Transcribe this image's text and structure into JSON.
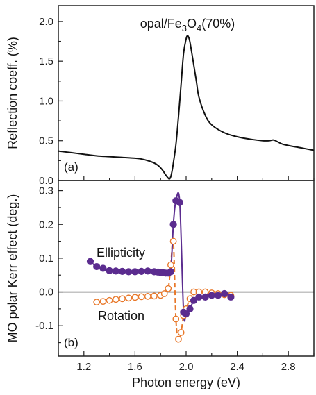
{
  "colors": {
    "reflection": "#111111",
    "ellipticity": "#5b2c8f",
    "rotation": "#e8782a",
    "frame": "#222222"
  },
  "xlabel": "Photon energy (eV)",
  "xticks": [
    "1.2",
    "1.6",
    "2.0",
    "2.4",
    "2.8"
  ],
  "chart_data": [
    {
      "type": "line",
      "panel_label": "(a)",
      "title": "opal/Fe3O4(70%)",
      "title_parts": [
        "opal/Fe",
        "3",
        "O",
        "4",
        "(70%)"
      ],
      "ylabel": "Reflection coeff. (%)",
      "xlim": [
        1.0,
        3.0
      ],
      "ylim": [
        0.0,
        2.2
      ],
      "yticks": [
        "0.0",
        "0.5",
        "1.0",
        "1.5",
        "2.0"
      ],
      "series": [
        {
          "x": [
            1.0,
            1.1,
            1.2,
            1.3,
            1.4,
            1.5,
            1.6,
            1.65,
            1.7,
            1.75,
            1.78,
            1.8,
            1.82,
            1.84,
            1.86,
            1.87,
            1.88,
            1.89,
            1.9,
            1.92,
            1.94,
            1.96,
            1.98,
            2.0,
            2.01,
            2.02,
            2.03,
            2.05,
            2.08,
            2.1,
            2.15,
            2.2,
            2.3,
            2.4,
            2.5,
            2.6,
            2.65,
            2.68,
            2.7,
            2.75,
            2.8,
            2.9,
            3.0
          ],
          "y": [
            0.37,
            0.35,
            0.33,
            0.31,
            0.3,
            0.29,
            0.28,
            0.27,
            0.25,
            0.22,
            0.19,
            0.16,
            0.12,
            0.07,
            0.03,
            0.02,
            0.05,
            0.12,
            0.22,
            0.45,
            0.8,
            1.2,
            1.6,
            1.78,
            1.82,
            1.8,
            1.74,
            1.55,
            1.25,
            1.05,
            0.82,
            0.7,
            0.6,
            0.55,
            0.52,
            0.5,
            0.5,
            0.51,
            0.5,
            0.46,
            0.44,
            0.41,
            0.38
          ]
        }
      ]
    },
    {
      "type": "line",
      "panel_label": "(b)",
      "ylabel": "MO polar Kerr effect (deg.)",
      "xlim": [
        1.0,
        3.0
      ],
      "ylim": [
        -0.19,
        0.33
      ],
      "yticks": [
        "-0.1",
        "0.0",
        "0.1",
        "0.2",
        "0.3"
      ],
      "annotations": [
        "Ellipticity",
        "Rotation"
      ],
      "series": [
        {
          "name": "Ellipticity",
          "marker": "filled",
          "line": "solid",
          "x": [
            1.25,
            1.3,
            1.35,
            1.4,
            1.45,
            1.5,
            1.55,
            1.6,
            1.65,
            1.7,
            1.75,
            1.78,
            1.8,
            1.82,
            1.84,
            1.86,
            1.88,
            1.9,
            1.92,
            1.95,
            1.98,
            2.0,
            2.03,
            2.06,
            2.1,
            2.15,
            2.2,
            2.25,
            2.3,
            2.35
          ],
          "y": [
            0.09,
            0.075,
            0.07,
            0.063,
            0.062,
            0.061,
            0.06,
            0.06,
            0.061,
            0.062,
            0.06,
            0.059,
            0.058,
            0.057,
            0.056,
            0.056,
            0.06,
            0.2,
            0.27,
            0.265,
            -0.06,
            -0.065,
            -0.05,
            -0.025,
            -0.015,
            -0.015,
            -0.01,
            -0.01,
            -0.005,
            -0.015
          ]
        },
        {
          "name": "Rotation",
          "marker": "open",
          "line": "dashed",
          "x": [
            1.3,
            1.35,
            1.4,
            1.45,
            1.5,
            1.55,
            1.6,
            1.65,
            1.7,
            1.75,
            1.8,
            1.83,
            1.86,
            1.88,
            1.9,
            1.92,
            1.94,
            1.96,
            1.98,
            2.0,
            2.03,
            2.06,
            2.1,
            2.15,
            2.2,
            2.25,
            2.3,
            2.35
          ],
          "y": [
            -0.03,
            -0.028,
            -0.025,
            -0.022,
            -0.02,
            -0.018,
            -0.016,
            -0.014,
            -0.013,
            -0.012,
            -0.01,
            -0.005,
            0.01,
            0.08,
            0.15,
            -0.08,
            -0.14,
            -0.12,
            -0.07,
            -0.05,
            -0.02,
            0.0,
            0.0,
            0.0,
            -0.003,
            -0.005,
            -0.008,
            -0.01
          ]
        }
      ]
    }
  ]
}
